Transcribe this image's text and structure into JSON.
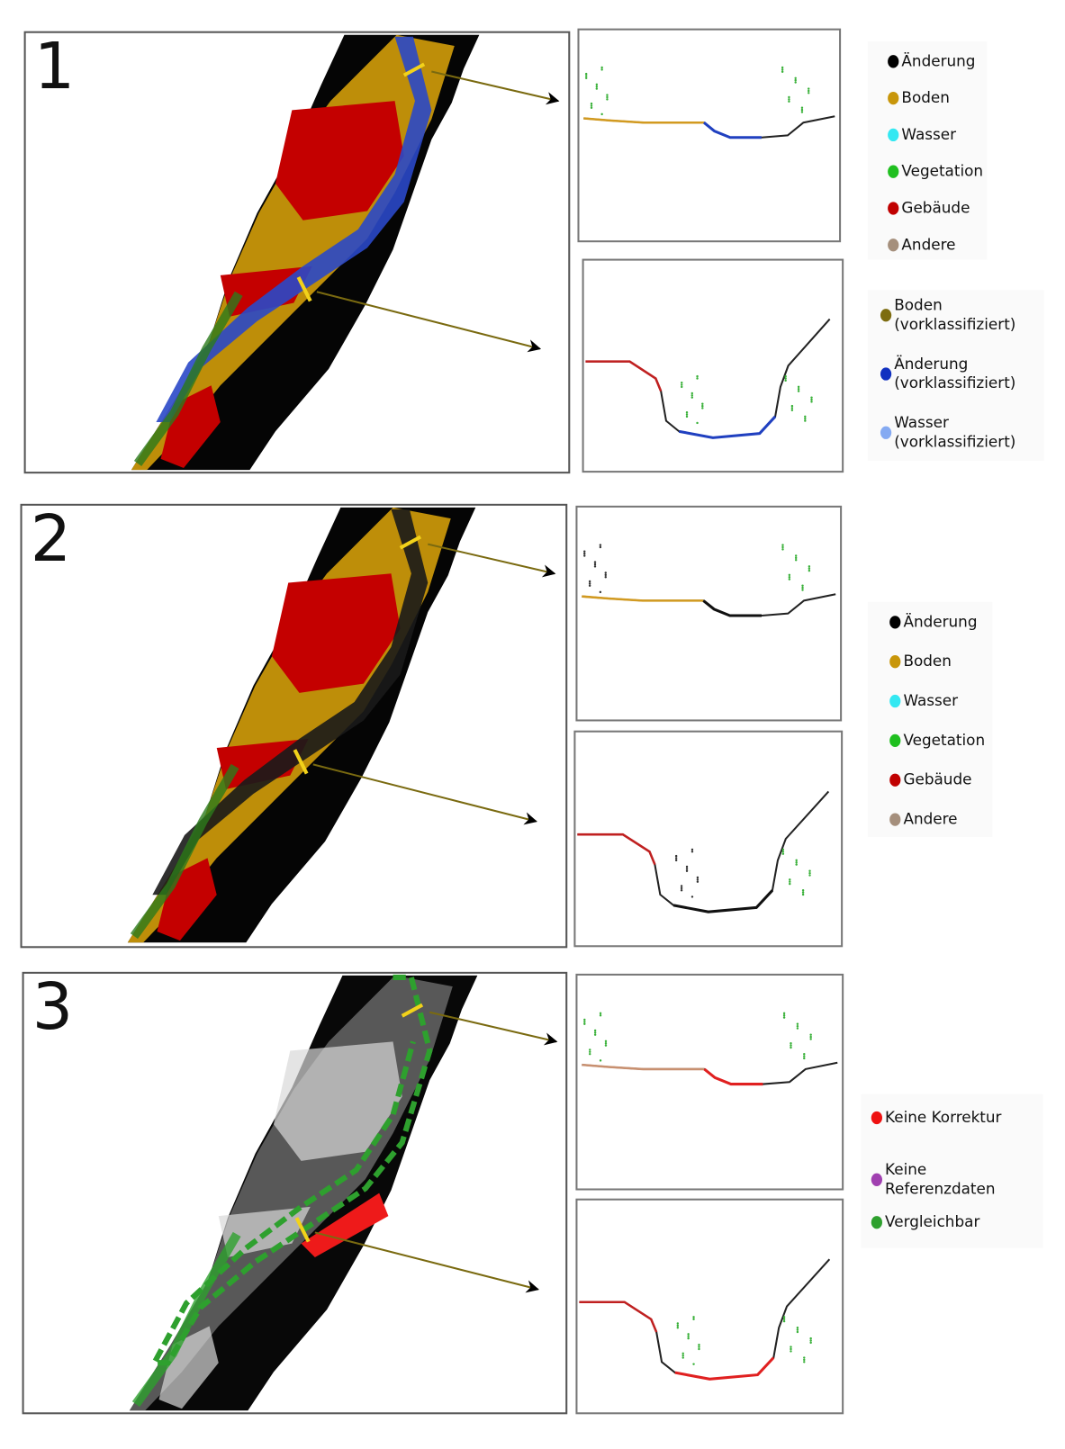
{
  "panels": [
    {
      "label": "1",
      "legend": [
        {
          "lines": [
            "Änderung"
          ],
          "color": "#000000"
        },
        {
          "lines": [
            "Boden"
          ],
          "color": "#c8960a"
        },
        {
          "lines": [
            "Wasser"
          ],
          "color": "#33e8f2"
        },
        {
          "lines": [
            "Vegetation"
          ],
          "color": "#1fbf1f"
        },
        {
          "lines": [
            "Gebäude"
          ],
          "color": "#c00000"
        },
        {
          "lines": [
            "Andere"
          ],
          "color": "#a58f7c"
        }
      ],
      "legend_secondary": [
        {
          "lines": [
            "Boden",
            "(vorklassifiziert)"
          ],
          "color": "#7d6c10"
        },
        {
          "lines": [
            "Änderung",
            "(vorklassifiziert)"
          ],
          "color": "#1030c0"
        },
        {
          "lines": [
            "Wasser",
            "(vorklassifiziert)"
          ],
          "color": "#85aaf2"
        }
      ]
    },
    {
      "label": "2",
      "legend": [
        {
          "lines": [
            "Änderung"
          ],
          "color": "#000000"
        },
        {
          "lines": [
            "Boden"
          ],
          "color": "#c8960a"
        },
        {
          "lines": [
            "Wasser"
          ],
          "color": "#33e8f2"
        },
        {
          "lines": [
            "Vegetation"
          ],
          "color": "#1fbf1f"
        },
        {
          "lines": [
            "Gebäude"
          ],
          "color": "#c00000"
        },
        {
          "lines": [
            "Andere"
          ],
          "color": "#a58f7c"
        }
      ]
    },
    {
      "label": "3",
      "legend": [
        {
          "lines": [
            "Keine Korrektur"
          ],
          "color": "#ee1111"
        },
        {
          "lines": [
            "Keine",
            "Referenzdaten"
          ],
          "color": "#a040b0"
        },
        {
          "lines": [
            "Vergleichbar"
          ],
          "color": "#2ea02e"
        }
      ]
    }
  ]
}
